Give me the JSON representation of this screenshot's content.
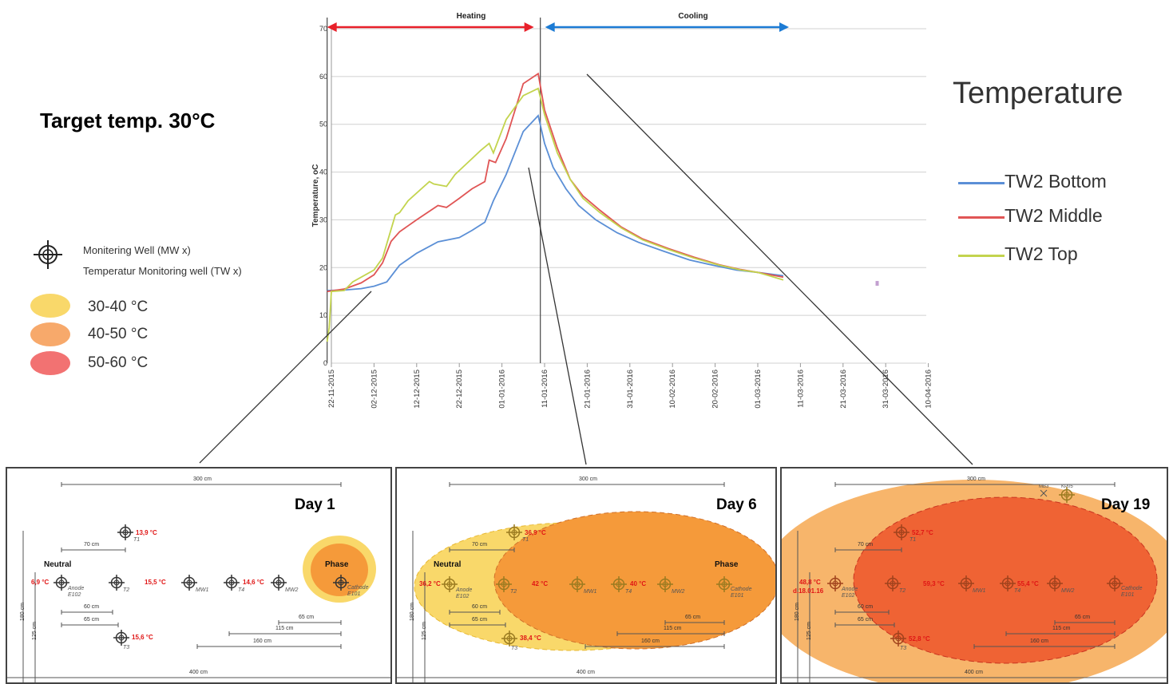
{
  "target_label": "Target temp. 30°C",
  "legend_left": {
    "well_labels": [
      "Monitering Well (MW x)",
      "Temperatur Monitoring well (TW x)"
    ],
    "ranges": [
      {
        "label": "30-40 °C",
        "color": "#f9d86a"
      },
      {
        "label": "40-50 °C",
        "color": "#f7a96b"
      },
      {
        "label": "50-60 °C",
        "color": "#f27272"
      }
    ]
  },
  "chart_title": "Temperature",
  "phases": [
    {
      "label": "Heating",
      "color": "#e8202a"
    },
    {
      "label": "Cooling",
      "color": "#1c7bd4"
    }
  ],
  "chart_data": {
    "type": "line",
    "ylabel": "Temperature, oC",
    "xlabel": "",
    "ylim": [
      0,
      70
    ],
    "yticks": [
      0,
      10,
      20,
      30,
      40,
      50,
      60,
      70
    ],
    "x_dates": [
      "22-11-2015",
      "02-12-2015",
      "12-12-2015",
      "22-12-2015",
      "01-01-2016",
      "11-01-2016",
      "21-01-2016",
      "31-01-2016",
      "10-02-2016",
      "20-02-2016",
      "01-03-2016",
      "11-03-2016",
      "21-03-2016",
      "31-03-2016",
      "10-04-2016"
    ],
    "vlines": [
      -0.1,
      4.9
    ],
    "series": [
      {
        "name": "TW2 Bottom",
        "color": "#5b8fd6",
        "points": [
          [
            -0.1,
            15.2
          ],
          [
            0.3,
            15.3
          ],
          [
            0.7,
            15.6
          ],
          [
            1.0,
            16.1
          ],
          [
            1.3,
            17.0
          ],
          [
            1.6,
            20.5
          ],
          [
            2.0,
            23.0
          ],
          [
            2.5,
            25.4
          ],
          [
            3.0,
            26.3
          ],
          [
            3.3,
            27.8
          ],
          [
            3.6,
            29.5
          ],
          [
            3.8,
            34.0
          ],
          [
            4.1,
            39.5
          ],
          [
            4.5,
            48.5
          ],
          [
            4.85,
            51.8
          ],
          [
            5.0,
            46.0
          ],
          [
            5.2,
            41.0
          ],
          [
            5.5,
            36.5
          ],
          [
            5.8,
            33.0
          ],
          [
            6.2,
            30.0
          ],
          [
            6.7,
            27.3
          ],
          [
            7.2,
            25.3
          ],
          [
            7.8,
            23.4
          ],
          [
            8.4,
            21.6
          ],
          [
            9.0,
            20.4
          ],
          [
            9.5,
            19.5
          ],
          [
            10.0,
            19.0
          ],
          [
            10.6,
            18.3
          ]
        ]
      },
      {
        "name": "TW2 Middle",
        "color": "#e05555",
        "points": [
          [
            -0.1,
            15.0
          ],
          [
            0.3,
            15.5
          ],
          [
            0.7,
            16.8
          ],
          [
            1.0,
            18.5
          ],
          [
            1.2,
            21.0
          ],
          [
            1.4,
            25.5
          ],
          [
            1.6,
            27.5
          ],
          [
            2.0,
            30.0
          ],
          [
            2.5,
            33.0
          ],
          [
            2.7,
            32.6
          ],
          [
            3.0,
            34.5
          ],
          [
            3.3,
            36.5
          ],
          [
            3.6,
            38.0
          ],
          [
            3.7,
            42.5
          ],
          [
            3.85,
            42.0
          ],
          [
            4.1,
            47.0
          ],
          [
            4.5,
            58.5
          ],
          [
            4.85,
            60.6
          ],
          [
            5.0,
            53.0
          ],
          [
            5.3,
            45.0
          ],
          [
            5.6,
            38.5
          ],
          [
            5.9,
            35.0
          ],
          [
            6.3,
            32.0
          ],
          [
            6.8,
            28.5
          ],
          [
            7.3,
            26.0
          ],
          [
            7.9,
            24.0
          ],
          [
            8.5,
            22.2
          ],
          [
            9.1,
            20.6
          ],
          [
            9.6,
            19.6
          ],
          [
            10.0,
            19.0
          ],
          [
            10.6,
            18.0
          ]
        ]
      },
      {
        "name": "TW2 Top",
        "color": "#c3d44e",
        "points": [
          [
            -0.1,
            4.5
          ],
          [
            -0.05,
            7.5
          ],
          [
            0.0,
            15.0
          ],
          [
            0.3,
            15.2
          ],
          [
            0.5,
            17.0
          ],
          [
            1.0,
            19.5
          ],
          [
            1.2,
            22.0
          ],
          [
            1.5,
            31.0
          ],
          [
            1.6,
            31.5
          ],
          [
            1.8,
            34.0
          ],
          [
            2.3,
            38.0
          ],
          [
            2.4,
            37.5
          ],
          [
            2.7,
            37.0
          ],
          [
            2.9,
            39.5
          ],
          [
            3.2,
            42.0
          ],
          [
            3.5,
            44.5
          ],
          [
            3.7,
            46.0
          ],
          [
            3.8,
            44.0
          ],
          [
            4.1,
            51.0
          ],
          [
            4.5,
            56.0
          ],
          [
            4.85,
            57.5
          ],
          [
            5.0,
            52.0
          ],
          [
            5.3,
            44.0
          ],
          [
            5.6,
            38.5
          ],
          [
            5.9,
            34.5
          ],
          [
            6.3,
            31.5
          ],
          [
            6.8,
            28.3
          ],
          [
            7.3,
            25.8
          ],
          [
            7.9,
            23.8
          ],
          [
            8.5,
            22.0
          ],
          [
            9.1,
            20.5
          ],
          [
            9.6,
            19.5
          ],
          [
            10.0,
            19.0
          ],
          [
            10.6,
            17.4
          ]
        ]
      }
    ],
    "stray_point": [
      12.8,
      16.7
    ]
  },
  "panels": [
    {
      "day": "Day 1",
      "dims": [
        "300 cm",
        "70 cm",
        "60 cm",
        "65 cm",
        "65 cm",
        "115 cm",
        "160 cm",
        "180 cm",
        "125 cm",
        "400 cm"
      ],
      "neutral": "Neutral",
      "phase": "Phase",
      "temps": [
        "13,9 °C",
        "6,9 °C",
        "15,5 °C",
        "14,6 °C",
        "15,6 °C"
      ],
      "wells": [
        "T1",
        "Anode E102",
        "T2",
        "MW1",
        "T4",
        "MW2",
        "Cathode E101",
        "T3"
      ]
    },
    {
      "day": "Day 6",
      "dims": [
        "300 cm",
        "70 cm",
        "60 cm",
        "65 cm",
        "65 cm",
        "115 cm",
        "160 cm",
        "180 cm",
        "125 cm",
        "400 cm"
      ],
      "neutral": "Neutral",
      "phase": "Phase",
      "temps": [
        "36,9 °C",
        "36,2 °C",
        "42 °C",
        "40 °C",
        "38,4 °C"
      ],
      "wells": [
        "T1",
        "Anode E102",
        "T2",
        "MW1",
        "T4",
        "MW2",
        "Cathode E101",
        "T3"
      ]
    },
    {
      "day": "Day 19",
      "dims": [
        "300 cm",
        "70 cm",
        "60 cm",
        "65 cm",
        "65 cm",
        "115 cm",
        "160 cm",
        "180 cm",
        "125 cm",
        "400 cm"
      ],
      "temps": [
        "52,7 °C",
        "48,8 °C",
        "d.18.01.16",
        "59,3 °C",
        "55,4 °C",
        "52,8 °C"
      ],
      "wells": [
        "T1",
        "Anode E102",
        "T2",
        "MW1",
        "T4",
        "MW2",
        "Cathode E101",
        "T3",
        "MB3",
        "KP05"
      ]
    }
  ]
}
